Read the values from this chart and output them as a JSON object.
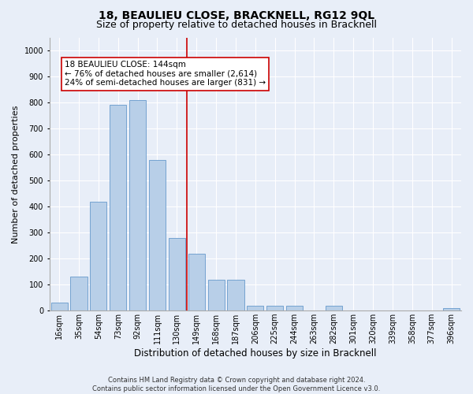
{
  "title": "18, BEAULIEU CLOSE, BRACKNELL, RG12 9QL",
  "subtitle": "Size of property relative to detached houses in Bracknell",
  "xlabel": "Distribution of detached houses by size in Bracknell",
  "ylabel": "Number of detached properties",
  "categories": [
    "16sqm",
    "35sqm",
    "54sqm",
    "73sqm",
    "92sqm",
    "111sqm",
    "130sqm",
    "149sqm",
    "168sqm",
    "187sqm",
    "206sqm",
    "225sqm",
    "244sqm",
    "263sqm",
    "282sqm",
    "301sqm",
    "320sqm",
    "339sqm",
    "358sqm",
    "377sqm",
    "396sqm"
  ],
  "values": [
    30,
    130,
    420,
    790,
    810,
    580,
    280,
    220,
    120,
    120,
    20,
    20,
    20,
    0,
    20,
    0,
    0,
    0,
    0,
    0,
    10
  ],
  "bar_color": "#b8cfe8",
  "bar_edge_color": "#6699cc",
  "background_color": "#e8eef8",
  "grid_color": "#ffffff",
  "vline_position": 6.5,
  "vline_color": "#cc0000",
  "annotation_text": "18 BEAULIEU CLOSE: 144sqm\n← 76% of detached houses are smaller (2,614)\n24% of semi-detached houses are larger (831) →",
  "annotation_box_facecolor": "#ffffff",
  "annotation_box_edgecolor": "#cc0000",
  "ylim": [
    0,
    1050
  ],
  "yticks": [
    0,
    100,
    200,
    300,
    400,
    500,
    600,
    700,
    800,
    900,
    1000
  ],
  "footnote": "Contains HM Land Registry data © Crown copyright and database right 2024.\nContains public sector information licensed under the Open Government Licence v3.0.",
  "title_fontsize": 10,
  "subtitle_fontsize": 9,
  "xlabel_fontsize": 8.5,
  "ylabel_fontsize": 8,
  "tick_fontsize": 7,
  "annotation_fontsize": 7.5,
  "footnote_fontsize": 6
}
